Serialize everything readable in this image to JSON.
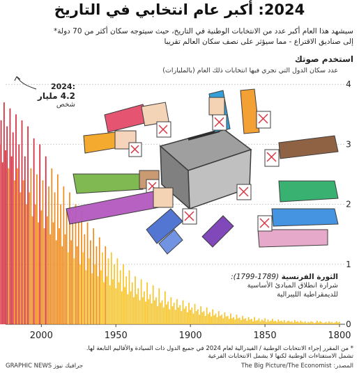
{
  "title": "2024: أكبر عام انتخابي في التاريخ",
  "subtitle": [
    "سيشهد هذا العام أكبر عدد من الانتخابات الوطنية في التاريخ، حيث سيتوجه سكان أكثر من 70 دولة*",
    "إلى صناديق الاقتراع - مما سيؤثر على نصف سكان العالم تقريبا"
  ],
  "panel_title": "استخدم صوتك",
  "panel_subtitle": "عدد سكان الدول التي تجري فيها انتخابات ذلك العام (بالمليارات)",
  "annotation_2024": {
    "year": ":2024",
    "value": "4.2 مليار",
    "unit": "شخص"
  },
  "annotation_revolution": {
    "title": "الثورة الفرنسية",
    "years": "(1789-1799):",
    "desc": [
      "شرارة انطلاق المبادئ الأساسية",
      "للديمقراطية الليبرالية"
    ]
  },
  "footnote": [
    "* من المقرر إجراء الانتخابات الوطنية / الفيدرالية لعام 2024 في جميع الدول ذات السيادة والأقاليم التابعة لها.",
    "تشمل الاستفتاءات الوطنية لكنها لا يشمل الانتخابات الفرعية"
  ],
  "source": "المصدر: The Big Picture/The Economist",
  "credit": "GRAPHIC NEWS جرافيك نيوز",
  "colors": {
    "red": "#d62a3a",
    "orange": "#f08a1c",
    "yellow": "#f7c42a",
    "grid": "#bdbdbd"
  },
  "chart_data": {
    "type": "bar",
    "x_direction": "reversed",
    "xlim": [
      1800,
      2024
    ],
    "ylim": [
      0,
      4.2
    ],
    "x_ticks": [
      "2000",
      "1950",
      "1900",
      "1850",
      "1800"
    ],
    "x_tick_values": [
      2000,
      1950,
      1900,
      1850,
      1800
    ],
    "y_ticks": [
      "0",
      "1",
      "2",
      "3",
      "4"
    ],
    "y_tick_values": [
      0,
      1,
      2,
      3,
      4
    ],
    "grid": true,
    "years_start": 1800,
    "values": [
      0.04,
      0.03,
      0.05,
      0.03,
      0.02,
      0.04,
      0.03,
      0.05,
      0.02,
      0.04,
      0.03,
      0.02,
      0.04,
      0.05,
      0.03,
      0.06,
      0.03,
      0.02,
      0.04,
      0.05,
      0.03,
      0.04,
      0.02,
      0.05,
      0.03,
      0.04,
      0.06,
      0.03,
      0.05,
      0.04,
      0.07,
      0.03,
      0.05,
      0.04,
      0.06,
      0.05,
      0.03,
      0.07,
      0.04,
      0.06,
      0.05,
      0.08,
      0.04,
      0.06,
      0.05,
      0.09,
      0.06,
      0.05,
      0.08,
      0.04,
      0.1,
      0.06,
      0.08,
      0.05,
      0.1,
      0.07,
      0.06,
      0.12,
      0.05,
      0.09,
      0.08,
      0.12,
      0.06,
      0.1,
      0.09,
      0.14,
      0.07,
      0.11,
      0.1,
      0.16,
      0.08,
      0.12,
      0.1,
      0.18,
      0.09,
      0.14,
      0.13,
      0.2,
      0.1,
      0.16,
      0.14,
      0.22,
      0.12,
      0.18,
      0.15,
      0.25,
      0.13,
      0.2,
      0.17,
      0.28,
      0.14,
      0.22,
      0.2,
      0.3,
      0.16,
      0.25,
      0.22,
      0.34,
      0.18,
      0.28,
      0.24,
      0.36,
      0.2,
      0.3,
      0.26,
      0.4,
      0.22,
      0.32,
      0.28,
      0.42,
      0.24,
      0.36,
      0.3,
      0.45,
      0.25,
      0.38,
      0.33,
      0.55,
      0.28,
      0.4,
      0.36,
      0.6,
      0.3,
      0.45,
      0.4,
      0.65,
      0.35,
      0.5,
      0.42,
      0.7,
      0.38,
      0.55,
      0.45,
      0.75,
      0.4,
      0.6,
      0.5,
      0.8,
      0.45,
      0.7,
      0.55,
      0.9,
      0.5,
      0.8,
      0.62,
      1.0,
      0.55,
      0.9,
      0.7,
      1.1,
      0.6,
      1.0,
      0.75,
      1.2,
      0.65,
      1.1,
      0.8,
      1.3,
      0.7,
      1.2,
      0.9,
      1.45,
      0.8,
      1.3,
      1.0,
      1.6,
      0.85,
      1.4,
      1.1,
      1.7,
      0.9,
      1.5,
      1.2,
      1.9,
      1.0,
      1.7,
      1.3,
      2.0,
      1.1,
      1.8,
      1.4,
      2.2,
      1.2,
      1.9,
      1.5,
      2.3,
      1.3,
      2.0,
      1.6,
      2.5,
      1.4,
      2.2,
      1.7,
      2.6,
      1.5,
      2.3,
      1.8,
      2.8,
      1.6,
      2.4,
      1.9,
      3.0,
      1.7,
      2.5,
      2.0,
      3.1,
      1.8,
      2.6,
      2.2,
      3.3,
      2.0,
      2.8,
      2.4,
      3.4,
      2.2,
      3.0,
      2.6,
      3.5,
      2.4,
      3.2,
      2.8,
      3.6,
      2.6,
      3.3,
      2.9,
      3.7,
      2.7,
      3.4,
      3.0,
      3.8,
      3.1,
      4.2
    ]
  },
  "illustration": {
    "ballot_box_label": "ballot box with raised hands"
  }
}
